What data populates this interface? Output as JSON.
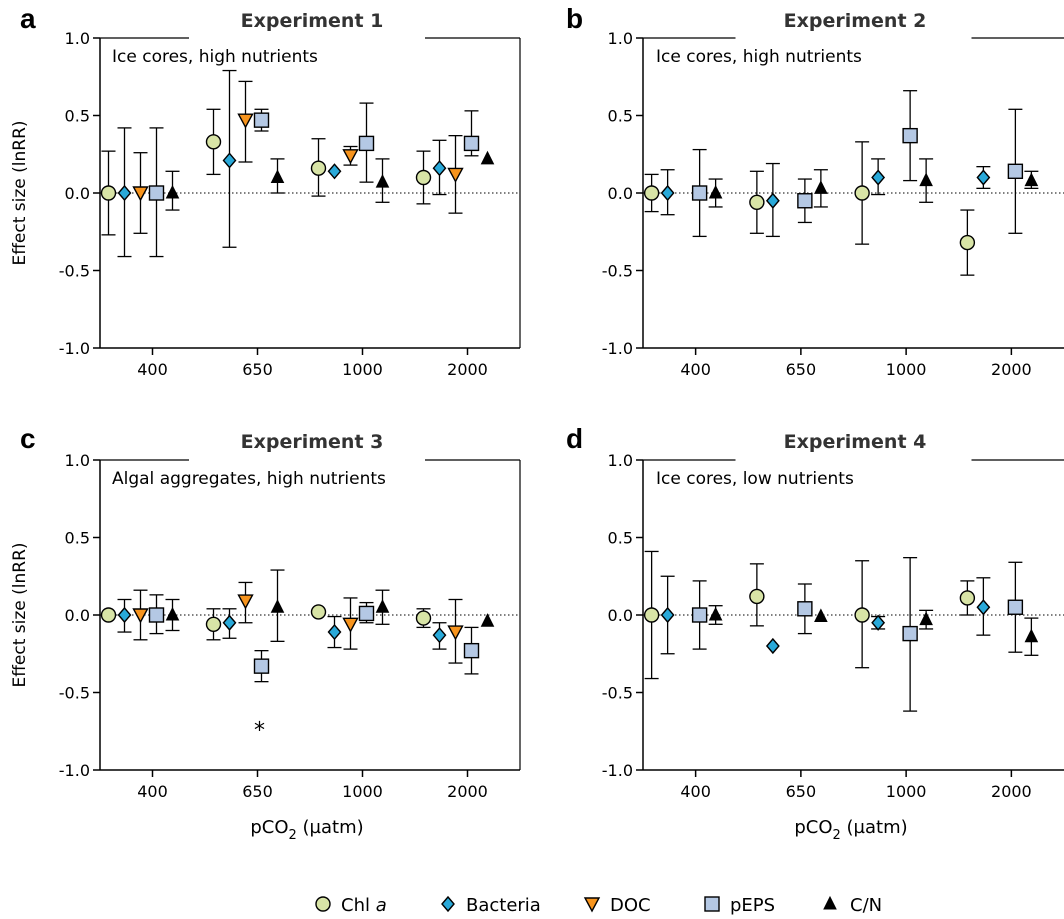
{
  "colors": {
    "chl": "#d8e4a6",
    "bacteria": "#29a9d9",
    "doc": "#f7941d",
    "peps": "#b4c8e4",
    "cn": "#000000",
    "outline": "#000000",
    "title_fill": "#333333"
  },
  "shared": {
    "categories": [
      "400",
      "650",
      "1000",
      "2000"
    ],
    "ylim": [
      -1.0,
      1.0
    ],
    "yticks": [
      "1.0",
      "0.5",
      "0.0",
      "-0.5",
      "-1.0"
    ],
    "ylabel": "Effect size (lnRR)",
    "xlabel_main": "pCO",
    "xlabel_sub": "2",
    "xlabel_unit": " (µatm)"
  },
  "legend": [
    {
      "key": "chl",
      "label_main": "Chl ",
      "label_italic": "a",
      "marker": "circle-icon"
    },
    {
      "key": "bacteria",
      "label_main": "Bacteria",
      "label_italic": "",
      "marker": "diamond-icon"
    },
    {
      "key": "doc",
      "label_main": "DOC",
      "label_italic": "",
      "marker": "triangle-down-icon"
    },
    {
      "key": "peps",
      "label_main": "pEPS",
      "label_italic": "",
      "marker": "square-icon"
    },
    {
      "key": "cn",
      "label_main": "C/N",
      "label_italic": "",
      "marker": "triangle-up-icon"
    }
  ],
  "chart_data": [
    {
      "type": "scatter",
      "panel": "a",
      "title": "Experiment 1",
      "annotation": "Ice cores, high nutrients",
      "ylabel": "Effect size (lnRR)",
      "xlabel": "",
      "categories": [
        "400",
        "650",
        "1000",
        "2000"
      ],
      "ylim": [
        -1.0,
        1.0
      ],
      "series": [
        {
          "name": "Chl a",
          "key": "chl",
          "values": [
            0.0,
            0.33,
            0.16,
            0.1
          ],
          "err_low": [
            -0.27,
            0.12,
            -0.02,
            -0.07
          ],
          "err_high": [
            0.27,
            0.54,
            0.35,
            0.27
          ]
        },
        {
          "name": "Bacteria",
          "key": "bacteria",
          "values": [
            0.0,
            0.21,
            0.14,
            0.16
          ],
          "err_low": [
            -0.41,
            -0.35,
            null,
            -0.01
          ],
          "err_high": [
            0.42,
            0.79,
            null,
            0.34
          ]
        },
        {
          "name": "DOC",
          "key": "doc",
          "values": [
            0.0,
            0.47,
            0.24,
            0.12
          ],
          "err_low": [
            -0.26,
            0.2,
            0.18,
            -0.13
          ],
          "err_high": [
            0.26,
            0.72,
            0.3,
            0.37
          ]
        },
        {
          "name": "pEPS",
          "key": "peps",
          "values": [
            0.0,
            0.47,
            0.32,
            0.32
          ],
          "err_low": [
            -0.41,
            0.4,
            0.07,
            0.24
          ],
          "err_high": [
            0.42,
            0.54,
            0.58,
            0.53
          ]
        },
        {
          "name": "C/N",
          "key": "cn",
          "values": [
            0.0,
            0.1,
            0.07,
            0.22
          ],
          "err_low": [
            -0.11,
            0.0,
            -0.06,
            null
          ],
          "err_high": [
            0.14,
            0.22,
            0.22,
            null
          ]
        }
      ],
      "annotations": []
    },
    {
      "type": "scatter",
      "panel": "b",
      "title": "Experiment 2",
      "annotation": "Ice cores, high nutrients",
      "ylabel": "",
      "xlabel": "",
      "categories": [
        "400",
        "650",
        "1000",
        "2000"
      ],
      "ylim": [
        -1.0,
        1.0
      ],
      "series": [
        {
          "name": "Chl a",
          "key": "chl",
          "values": [
            0.0,
            -0.06,
            0.0,
            -0.32
          ],
          "err_low": [
            -0.12,
            -0.26,
            -0.33,
            -0.53
          ],
          "err_high": [
            0.12,
            0.14,
            0.33,
            -0.11
          ]
        },
        {
          "name": "Bacteria",
          "key": "bacteria",
          "values": [
            0.0,
            -0.05,
            0.1,
            0.1
          ],
          "err_low": [
            -0.14,
            -0.28,
            -0.01,
            0.03
          ],
          "err_high": [
            0.15,
            0.19,
            0.22,
            0.17
          ]
        },
        {
          "name": "DOC",
          "key": "doc",
          "values": [
            null,
            null,
            null,
            null
          ],
          "err_low": [
            null,
            null,
            null,
            null
          ],
          "err_high": [
            null,
            null,
            null,
            null
          ]
        },
        {
          "name": "pEPS",
          "key": "peps",
          "values": [
            0.0,
            -0.05,
            0.37,
            0.14
          ],
          "err_low": [
            -0.28,
            -0.19,
            0.08,
            -0.26
          ],
          "err_high": [
            0.28,
            0.09,
            0.66,
            0.54
          ]
        },
        {
          "name": "C/N",
          "key": "cn",
          "values": [
            0.0,
            0.03,
            0.08,
            0.08
          ],
          "err_low": [
            -0.09,
            -0.09,
            -0.06,
            0.03
          ],
          "err_high": [
            0.09,
            0.15,
            0.22,
            0.14
          ]
        }
      ],
      "annotations": []
    },
    {
      "type": "scatter",
      "panel": "c",
      "title": "Experiment 3",
      "annotation": "Algal aggregates, high nutrients",
      "ylabel": "Effect size (lnRR)",
      "xlabel": "pCO2 (µatm)",
      "categories": [
        "400",
        "650",
        "1000",
        "2000"
      ],
      "ylim": [
        -1.0,
        1.0
      ],
      "series": [
        {
          "name": "Chl a",
          "key": "chl",
          "values": [
            0.0,
            -0.06,
            0.02,
            -0.02
          ],
          "err_low": [
            null,
            -0.16,
            null,
            -0.08
          ],
          "err_high": [
            null,
            0.04,
            null,
            0.04
          ]
        },
        {
          "name": "Bacteria",
          "key": "bacteria",
          "values": [
            0.0,
            -0.05,
            -0.11,
            -0.13
          ],
          "err_low": [
            -0.11,
            -0.15,
            -0.21,
            -0.22
          ],
          "err_high": [
            0.1,
            0.04,
            -0.01,
            -0.05
          ]
        },
        {
          "name": "DOC",
          "key": "doc",
          "values": [
            0.0,
            0.09,
            -0.06,
            -0.11
          ],
          "err_low": [
            -0.16,
            -0.05,
            -0.22,
            -0.31
          ],
          "err_high": [
            0.16,
            0.21,
            0.11,
            0.1
          ]
        },
        {
          "name": "pEPS",
          "key": "peps",
          "values": [
            0.0,
            -0.33,
            0.01,
            -0.23
          ],
          "err_low": [
            -0.12,
            -0.43,
            -0.05,
            -0.38
          ],
          "err_high": [
            0.13,
            -0.23,
            0.08,
            -0.08
          ]
        },
        {
          "name": "C/N",
          "key": "cn",
          "values": [
            0.0,
            0.05,
            0.05,
            -0.04
          ],
          "err_low": [
            -0.1,
            -0.17,
            -0.06,
            null
          ],
          "err_high": [
            0.1,
            0.29,
            0.16,
            null
          ]
        }
      ],
      "annotations": [
        {
          "text": "*",
          "category": "650",
          "y": -0.74
        }
      ]
    },
    {
      "type": "scatter",
      "panel": "d",
      "title": "Experiment 4",
      "annotation": "Ice cores, low nutrients",
      "ylabel": "",
      "xlabel": "pCO2 (µatm)",
      "categories": [
        "400",
        "650",
        "1000",
        "2000"
      ],
      "ylim": [
        -1.0,
        1.0
      ],
      "series": [
        {
          "name": "Chl a",
          "key": "chl",
          "values": [
            0.0,
            0.12,
            0.0,
            0.11
          ],
          "err_low": [
            -0.41,
            -0.07,
            -0.34,
            0.0
          ],
          "err_high": [
            0.41,
            0.33,
            0.35,
            0.22
          ]
        },
        {
          "name": "Bacteria",
          "key": "bacteria",
          "values": [
            0.0,
            -0.2,
            -0.05,
            0.05
          ],
          "err_low": [
            -0.25,
            null,
            -0.09,
            -0.13
          ],
          "err_high": [
            0.25,
            null,
            -0.01,
            0.24
          ]
        },
        {
          "name": "DOC",
          "key": "doc",
          "values": [
            null,
            null,
            null,
            null
          ],
          "err_low": [
            null,
            null,
            null,
            null
          ],
          "err_high": [
            null,
            null,
            null,
            null
          ]
        },
        {
          "name": "pEPS",
          "key": "peps",
          "values": [
            0.0,
            0.04,
            -0.12,
            0.05
          ],
          "err_low": [
            -0.22,
            -0.12,
            -0.62,
            -0.24
          ],
          "err_high": [
            0.22,
            0.2,
            0.37,
            0.34
          ]
        },
        {
          "name": "C/N",
          "key": "cn",
          "values": [
            0.0,
            -0.01,
            -0.03,
            -0.14
          ],
          "err_low": [
            -0.06,
            null,
            -0.09,
            -0.26
          ],
          "err_high": [
            0.06,
            null,
            0.03,
            -0.02
          ]
        }
      ],
      "annotations": []
    }
  ]
}
